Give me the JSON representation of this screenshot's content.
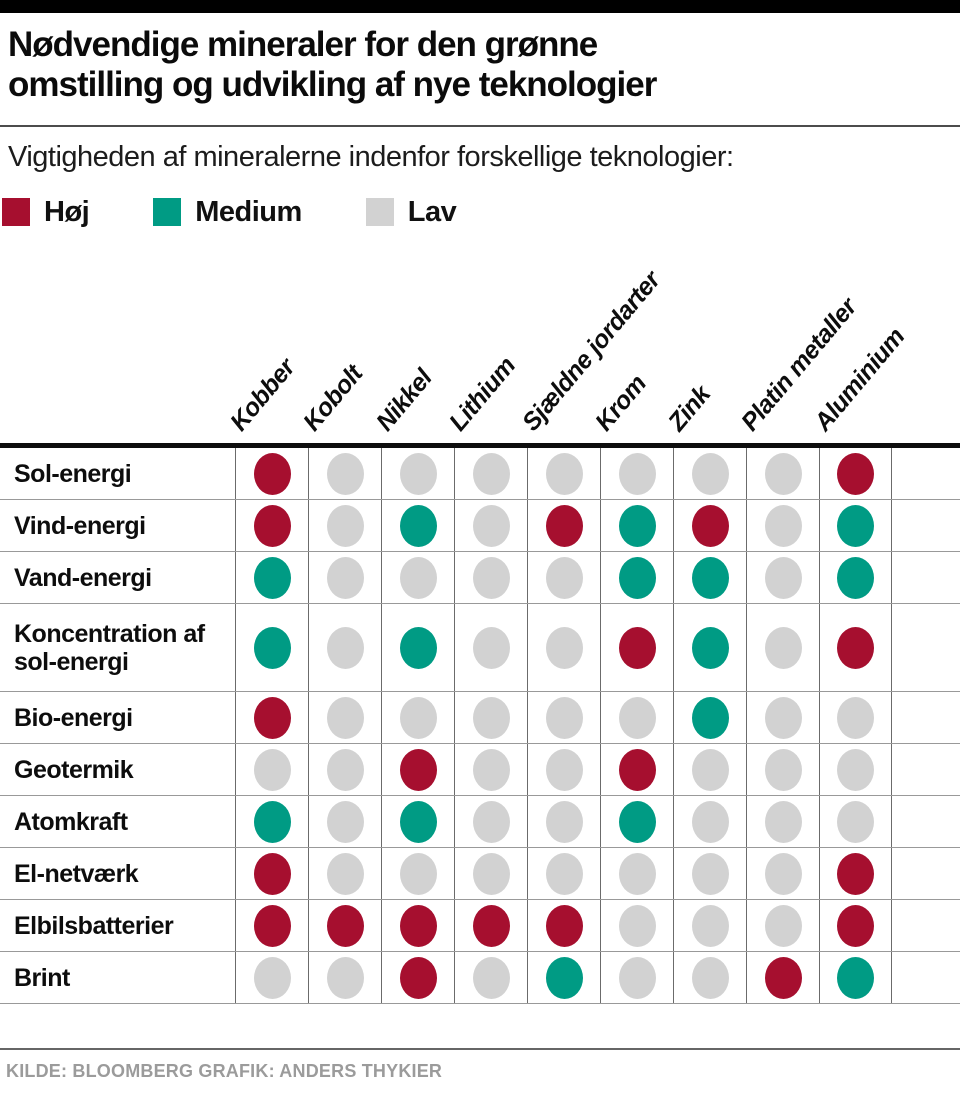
{
  "header": {
    "title_line1": "Nødvendige mineraler for den grønne",
    "title_line2": "omstilling og udvikling af nye teknologier",
    "subtitle": "Vigtigheden af mineralerne indenfor forskellige teknologier:"
  },
  "legend": {
    "items": [
      {
        "label": "Høj",
        "level": "high"
      },
      {
        "label": "Medium",
        "level": "medium"
      },
      {
        "label": "Lav",
        "level": "low"
      }
    ]
  },
  "colors": {
    "high": "#a60f2f",
    "medium": "#009b84",
    "low": "#d2d2d2"
  },
  "chart_data": {
    "type": "heatmap",
    "title": "Nødvendige mineraler for den grønne omstilling og udvikling af nye teknologier",
    "subtitle": "Vigtigheden af mineralerne indenfor forskellige teknologier:",
    "value_labels": {
      "high": "Høj",
      "medium": "Medium",
      "low": "Lav"
    },
    "columns": [
      "Kobber",
      "Kobolt",
      "Nikkel",
      "Lithium",
      "Sjældne jordarter",
      "Krom",
      "Zink",
      "Platin metaller",
      "Aluminium"
    ],
    "rows": [
      {
        "label": "Sol-energi",
        "values": [
          "high",
          "low",
          "low",
          "low",
          "low",
          "low",
          "low",
          "low",
          "high"
        ]
      },
      {
        "label": "Vind-energi",
        "values": [
          "high",
          "low",
          "medium",
          "low",
          "high",
          "medium",
          "high",
          "low",
          "medium"
        ]
      },
      {
        "label": "Vand-energi",
        "values": [
          "medium",
          "low",
          "low",
          "low",
          "low",
          "medium",
          "medium",
          "low",
          "medium"
        ]
      },
      {
        "label": "Koncentration af sol-energi",
        "values": [
          "medium",
          "low",
          "medium",
          "low",
          "low",
          "high",
          "medium",
          "low",
          "high"
        ]
      },
      {
        "label": "Bio-energi",
        "values": [
          "high",
          "low",
          "low",
          "low",
          "low",
          "low",
          "medium",
          "low",
          "low"
        ]
      },
      {
        "label": "Geotermik",
        "values": [
          "low",
          "low",
          "high",
          "low",
          "low",
          "high",
          "low",
          "low",
          "low"
        ]
      },
      {
        "label": "Atomkraft",
        "values": [
          "medium",
          "low",
          "medium",
          "low",
          "low",
          "medium",
          "low",
          "low",
          "low"
        ]
      },
      {
        "label": "El-netværk",
        "values": [
          "high",
          "low",
          "low",
          "low",
          "low",
          "low",
          "low",
          "low",
          "high"
        ]
      },
      {
        "label": "Elbilsbatterier",
        "values": [
          "high",
          "high",
          "high",
          "high",
          "high",
          "low",
          "low",
          "low",
          "high"
        ]
      },
      {
        "label": "Brint",
        "values": [
          "low",
          "low",
          "high",
          "low",
          "medium",
          "low",
          "low",
          "high",
          "medium"
        ]
      }
    ],
    "legend_position": "top",
    "grid": true
  },
  "footer": {
    "credits": "KILDE: BLOOMBERG  GRAFIK: ANDERS THYKIER"
  }
}
